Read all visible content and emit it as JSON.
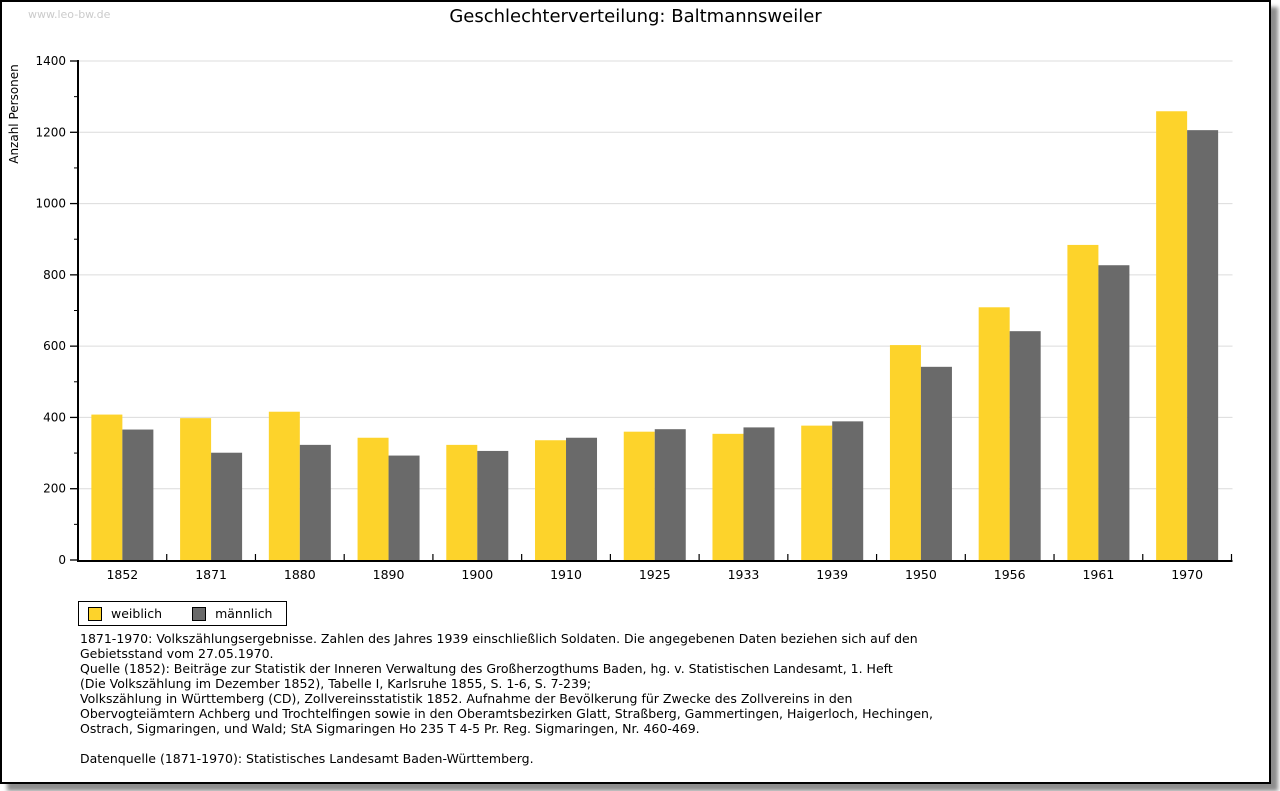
{
  "watermark": "www.leo-bw.de",
  "title": "Geschlechterverteilung: Baltmannsweiler",
  "chart_data": {
    "type": "bar",
    "title": "Geschlechterverteilung: Baltmannsweiler",
    "xlabel": "",
    "ylabel": "Anzahl Personen",
    "ylim": [
      0,
      1400
    ],
    "ytick_major_step": 200,
    "ytick_minor_step": 100,
    "grid": true,
    "legend_position": "bottom-left",
    "categories": [
      "1852",
      "1871",
      "1880",
      "1890",
      "1900",
      "1910",
      "1925",
      "1933",
      "1939",
      "1950",
      "1956",
      "1961",
      "1970"
    ],
    "series": [
      {
        "name": "weiblich",
        "color": "#FDD32B",
        "values": [
          408,
          398,
          416,
          343,
          323,
          336,
          360,
          354,
          377,
          603,
          709,
          884,
          1259
        ]
      },
      {
        "name": "männlich",
        "color": "#6A6A6A",
        "values": [
          366,
          301,
          323,
          293,
          306,
          343,
          367,
          372,
          389,
          542,
          642,
          827,
          1206
        ]
      }
    ],
    "colors": {
      "gridline": "#dcdcdc",
      "axis": "#000000"
    }
  },
  "footnotes": {
    "lines": [
      "1871-1970: Volkszählungsergebnisse. Zahlen des Jahres 1939 einschließlich Soldaten. Die angegebenen Daten beziehen sich auf den",
      "Gebietsstand vom 27.05.1970.",
      "Quelle (1852): Beiträge zur Statistik der Inneren Verwaltung des Großherzogthums Baden, hg. v. Statistischen Landesamt, 1. Heft",
      "(Die Volkszählung im Dezember 1852), Tabelle I, Karlsruhe 1855, S. 1-6, S. 7-239;",
      "Volkszählung in Württemberg (CD), Zollvereinsstatistik 1852. Aufnahme der Bevölkerung für Zwecke des Zollvereins in den",
      "Obervogteiämtern Achberg und Trochtelfingen sowie in den Oberamtsbezirken Glatt, Straßberg, Gammertingen, Haigerloch, Hechingen,",
      "Ostrach, Sigmaringen, und Wald; StA Sigmaringen Ho 235 T 4-5 Pr. Reg. Sigmaringen, Nr. 460-469."
    ],
    "datasource": "Datenquelle (1871-1970): Statistisches Landesamt Baden-Württemberg."
  }
}
